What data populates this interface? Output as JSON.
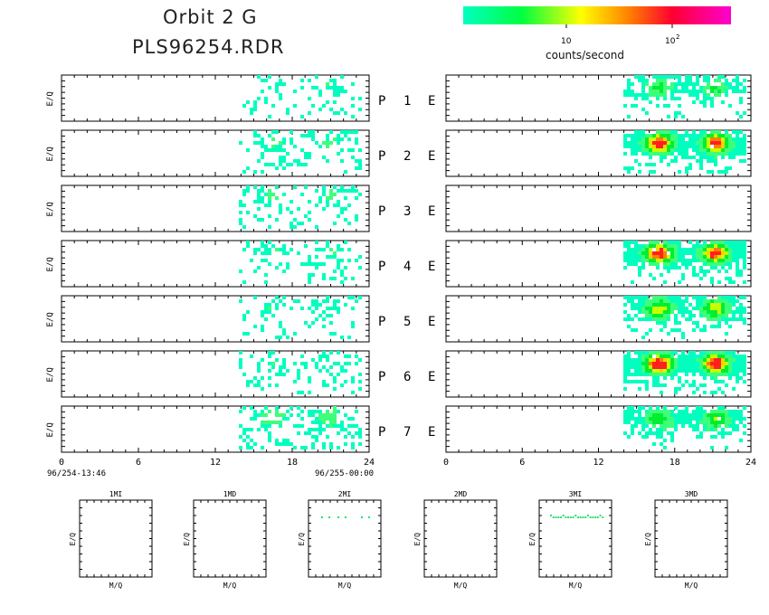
{
  "header": {
    "title_line1": "Orbit 2 G",
    "title_line2": "PLS96254.RDR"
  },
  "colorbar": {
    "label": "counts/second",
    "tick_labels": [
      "10",
      "10",
      "2"
    ],
    "colors": [
      "#00ffbf",
      "#00ff40",
      "#ffff00",
      "#ff8000",
      "#ff0030",
      "#ff00d0"
    ]
  },
  "chart_data": {
    "type": "heatmap",
    "panel_ylabel": "E/Q",
    "left_column": {
      "xticks": [
        0,
        6,
        12,
        18,
        24
      ],
      "xlim": [
        0,
        24
      ],
      "start_label": "96/254-13:46",
      "end_label": "96/255-00:00"
    },
    "right_column": {
      "xticks": [
        0,
        6,
        12,
        18,
        24
      ],
      "xlim": [
        0,
        24
      ]
    },
    "rows": [
      {
        "p_label": "P",
        "num": "1",
        "e_label": "E",
        "left_activity": 0.35,
        "right_activity": 0.5
      },
      {
        "p_label": "P",
        "num": "2",
        "e_label": "E",
        "left_activity": 0.4,
        "right_activity": 0.9
      },
      {
        "p_label": "P",
        "num": "3",
        "e_label": "E",
        "left_activity": 0.4,
        "right_activity": 0.0
      },
      {
        "p_label": "P",
        "num": "4",
        "e_label": "E",
        "left_activity": 0.35,
        "right_activity": 0.9
      },
      {
        "p_label": "P",
        "num": "5",
        "e_label": "E",
        "left_activity": 0.3,
        "right_activity": 0.7
      },
      {
        "p_label": "P",
        "num": "6",
        "e_label": "E",
        "left_activity": 0.35,
        "right_activity": 0.95
      },
      {
        "p_label": "P",
        "num": "7",
        "e_label": "E",
        "left_activity": 0.55,
        "right_activity": 0.6
      }
    ],
    "mass_panels": [
      {
        "label": "1MI",
        "xlabel": "M/Q",
        "ylabel": "E/Q",
        "points": 0
      },
      {
        "label": "1MD",
        "xlabel": "M/Q",
        "ylabel": "E/Q",
        "points": 0
      },
      {
        "label": "2MI",
        "xlabel": "M/Q",
        "ylabel": "E/Q",
        "points": 6
      },
      {
        "label": "2MD",
        "xlabel": "M/Q",
        "ylabel": "E/Q",
        "points": 0
      },
      {
        "label": "3MI",
        "xlabel": "M/Q",
        "ylabel": "E/Q",
        "points": 22
      },
      {
        "label": "3MD",
        "xlabel": "M/Q",
        "ylabel": "E/Q",
        "points": 0
      }
    ]
  }
}
